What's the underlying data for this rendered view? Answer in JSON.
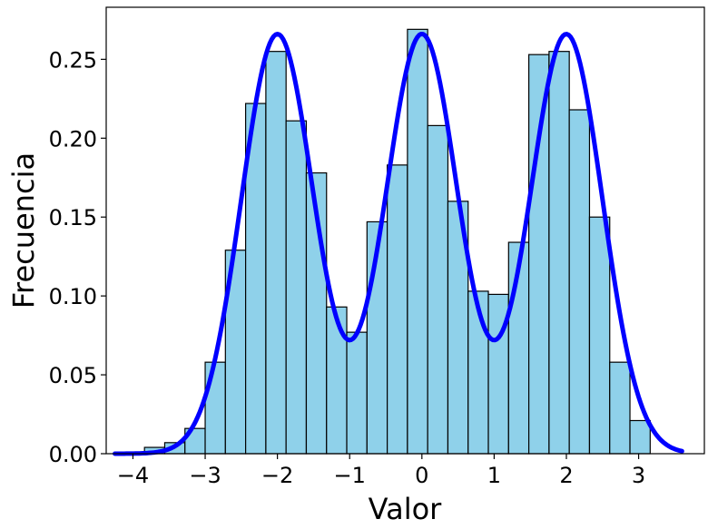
{
  "chart_data": {
    "type": "bar",
    "title": "",
    "xlabel": "Valor",
    "ylabel": "Frecuencia",
    "xlim": [
      -4.37,
      3.91
    ],
    "ylim": [
      0,
      0.283
    ],
    "xticks": [
      -4,
      -3,
      -2,
      -1,
      0,
      1,
      2,
      3
    ],
    "xtick_labels": [
      "−4",
      "−3",
      "−2",
      "−1",
      "0",
      "1",
      "2",
      "3"
    ],
    "yticks": [
      0.0,
      0.05,
      0.1,
      0.15,
      0.2,
      0.25
    ],
    "ytick_labels": [
      "0.00",
      "0.05",
      "0.10",
      "0.15",
      "0.20",
      "0.25"
    ],
    "histogram": {
      "bin_edges": [
        -3.84,
        -3.56,
        -3.28,
        -3.0,
        -2.72,
        -2.44,
        -2.16,
        -1.88,
        -1.6,
        -1.32,
        -1.04,
        -0.76,
        -0.48,
        -0.2,
        0.08,
        0.36,
        0.64,
        0.92,
        1.2,
        1.48,
        1.76,
        2.04,
        2.32,
        2.6,
        2.88,
        3.16
      ],
      "values": [
        0.004,
        0.007,
        0.016,
        0.058,
        0.129,
        0.222,
        0.255,
        0.211,
        0.178,
        0.093,
        0.077,
        0.147,
        0.183,
        0.269,
        0.208,
        0.16,
        0.103,
        0.101,
        0.134,
        0.253,
        0.255,
        0.218,
        0.15,
        0.058,
        0.021
      ],
      "fill_color": "#8fd1ea",
      "edge_color": "#000000"
    },
    "density_curve": {
      "x_range": [
        -4.25,
        3.6
      ],
      "components": [
        {
          "mean": -2,
          "std": 0.5,
          "weight": 0.3333
        },
        {
          "mean": 0,
          "std": 0.5,
          "weight": 0.3333
        },
        {
          "mean": 2,
          "std": 0.5,
          "weight": 0.3333
        }
      ],
      "color": "#0000ff"
    }
  }
}
